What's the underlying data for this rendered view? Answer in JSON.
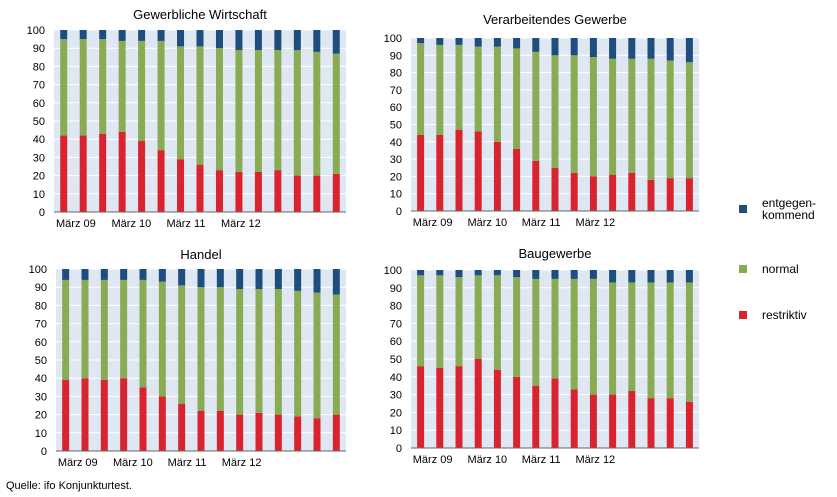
{
  "colors": {
    "plot_background": "#dfe7f2",
    "gridline": "#ffffff",
    "restriktiv": "#d9242f",
    "normal": "#89ab54",
    "entgegenkommend": "#1e4e7e"
  },
  "x_tick_labels": [
    "März 09",
    "März 10",
    "März 11",
    "März 12"
  ],
  "legend": [
    {
      "key": "entgegenkommend",
      "label": "entgegen-\nkommend"
    },
    {
      "key": "normal",
      "label": "normal"
    },
    {
      "key": "restriktiv",
      "label": "restriktiv"
    }
  ],
  "source": "Quelle: ifo Konjunkturtest.",
  "chart_data": [
    {
      "type": "bar",
      "stacked": true,
      "title": "Gewerbliche Wirtschaft",
      "ylim": [
        0,
        100
      ],
      "yticks": [
        0,
        10,
        20,
        30,
        40,
        50,
        60,
        70,
        80,
        90,
        100
      ],
      "series": [
        {
          "name": "restriktiv",
          "values": [
            42,
            42,
            43,
            44,
            39,
            34,
            29,
            26,
            23,
            22,
            22,
            23,
            20,
            20,
            21
          ]
        },
        {
          "name": "normal",
          "values": [
            53,
            53,
            52,
            50,
            55,
            60,
            62,
            65,
            67,
            67,
            67,
            66,
            69,
            68,
            66
          ]
        },
        {
          "name": "entgegenkommend",
          "values": [
            5,
            5,
            5,
            6,
            6,
            6,
            9,
            9,
            10,
            11,
            11,
            11,
            11,
            12,
            13
          ]
        }
      ]
    },
    {
      "type": "bar",
      "stacked": true,
      "title": "Verarbeitendes Gewerbe",
      "ylim": [
        0,
        100
      ],
      "yticks": [
        0,
        10,
        20,
        30,
        40,
        50,
        60,
        70,
        80,
        90,
        100
      ],
      "series": [
        {
          "name": "restriktiv",
          "values": [
            44,
            44,
            47,
            46,
            40,
            36,
            29,
            25,
            22,
            20,
            21,
            22,
            18,
            19,
            19
          ]
        },
        {
          "name": "normal",
          "values": [
            53,
            52,
            49,
            49,
            55,
            58,
            63,
            65,
            68,
            69,
            67,
            66,
            70,
            68,
            67
          ]
        },
        {
          "name": "entgegenkommend",
          "values": [
            3,
            4,
            4,
            5,
            5,
            6,
            8,
            10,
            10,
            11,
            12,
            12,
            12,
            13,
            14
          ]
        }
      ]
    },
    {
      "type": "bar",
      "stacked": true,
      "title": "Handel",
      "ylim": [
        0,
        100
      ],
      "yticks": [
        0,
        10,
        20,
        30,
        40,
        50,
        60,
        70,
        80,
        90,
        100
      ],
      "series": [
        {
          "name": "restriktiv",
          "values": [
            39,
            40,
            39,
            40,
            35,
            30,
            26,
            22,
            22,
            20,
            21,
            20,
            19,
            18,
            20
          ]
        },
        {
          "name": "normal",
          "values": [
            55,
            54,
            55,
            54,
            59,
            63,
            65,
            68,
            68,
            69,
            68,
            69,
            69,
            69,
            66
          ]
        },
        {
          "name": "entgegenkommend",
          "values": [
            6,
            6,
            6,
            6,
            6,
            7,
            9,
            10,
            10,
            11,
            11,
            11,
            12,
            13,
            14
          ]
        }
      ]
    },
    {
      "type": "bar",
      "stacked": true,
      "title": "Baugewerbe",
      "ylim": [
        0,
        100
      ],
      "yticks": [
        0,
        10,
        20,
        30,
        40,
        50,
        60,
        70,
        80,
        90,
        100
      ],
      "series": [
        {
          "name": "restriktiv",
          "values": [
            46,
            45,
            46,
            50,
            44,
            40,
            35,
            39,
            33,
            30,
            30,
            32,
            28,
            28,
            26
          ]
        },
        {
          "name": "normal",
          "values": [
            51,
            52,
            50,
            47,
            53,
            56,
            60,
            56,
            62,
            65,
            63,
            61,
            65,
            65,
            67
          ]
        },
        {
          "name": "entgegenkommend",
          "values": [
            3,
            3,
            4,
            3,
            3,
            4,
            5,
            5,
            5,
            5,
            7,
            7,
            7,
            7,
            7
          ]
        }
      ]
    }
  ]
}
